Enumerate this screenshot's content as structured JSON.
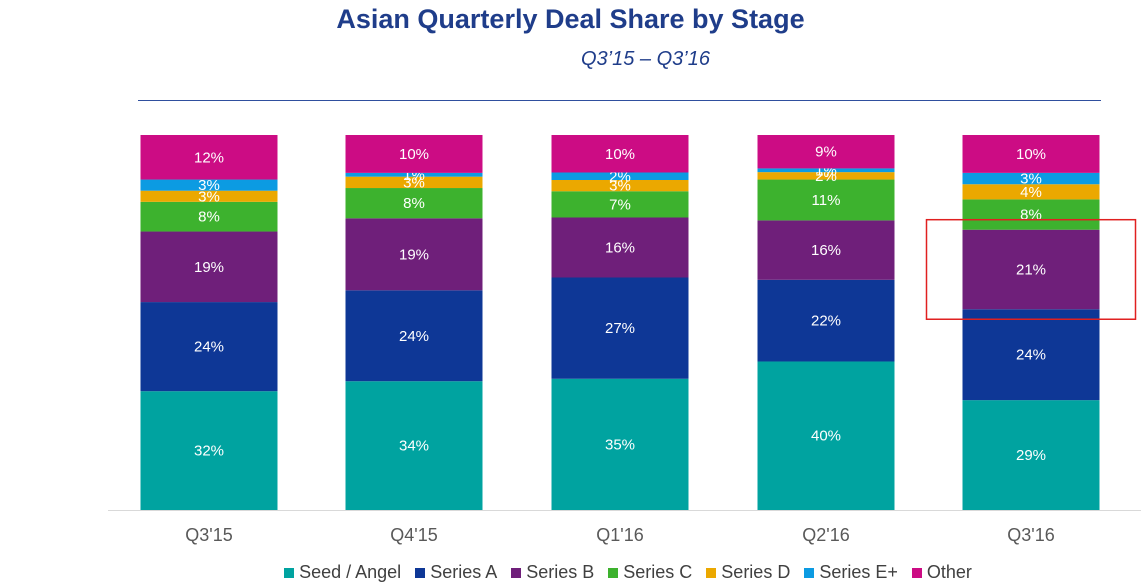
{
  "chart_data": {
    "type": "bar",
    "stacked": true,
    "title": "Asian Quarterly Deal Share by Stage",
    "subtitle": "Q3’15 – Q3’16",
    "xlabel": "",
    "ylabel": "",
    "ylim": [
      0,
      100
    ],
    "categories": [
      "Q3'15",
      "Q4'15",
      "Q1'16",
      "Q2'16",
      "Q3'16"
    ],
    "series": [
      {
        "name": "Seed / Angel",
        "color": "#00a3a0",
        "values": [
          32,
          34,
          35,
          40,
          29
        ],
        "labels": [
          "32%",
          "34%",
          "35%",
          "40%",
          "29%"
        ]
      },
      {
        "name": "Series A",
        "color": "#0e3796",
        "values": [
          24,
          24,
          27,
          22,
          24
        ],
        "labels": [
          "24%",
          "24%",
          "27%",
          "22%",
          "24%"
        ]
      },
      {
        "name": "Series B",
        "color": "#6f1f7a",
        "values": [
          19,
          19,
          16,
          16,
          21
        ],
        "labels": [
          "19%",
          "19%",
          "16%",
          "16%",
          "21%"
        ]
      },
      {
        "name": "Series C",
        "color": "#3db22e",
        "values": [
          8,
          8,
          7,
          11,
          8
        ],
        "labels": [
          "8%",
          "8%",
          "7%",
          "11%",
          "8%"
        ]
      },
      {
        "name": "Series D",
        "color": "#eba800",
        "values": [
          3,
          3,
          3,
          2,
          4
        ],
        "labels": [
          "3%",
          "3%",
          "3%",
          "2%",
          "4%"
        ]
      },
      {
        "name": "Series E+",
        "color": "#0c9be2",
        "values": [
          3,
          1,
          2,
          1,
          3
        ],
        "labels": [
          "3%",
          "1%",
          "2%",
          "1%",
          "3%"
        ]
      },
      {
        "name": "Other",
        "color": "#cc0c84",
        "values": [
          12,
          10,
          10,
          9,
          10
        ],
        "labels": [
          "12%",
          "10%",
          "10%",
          "9%",
          "10%"
        ]
      }
    ],
    "highlight": {
      "category": "Q3'16",
      "series": "Series B",
      "color": "#e02020"
    },
    "legend_position": "bottom"
  }
}
